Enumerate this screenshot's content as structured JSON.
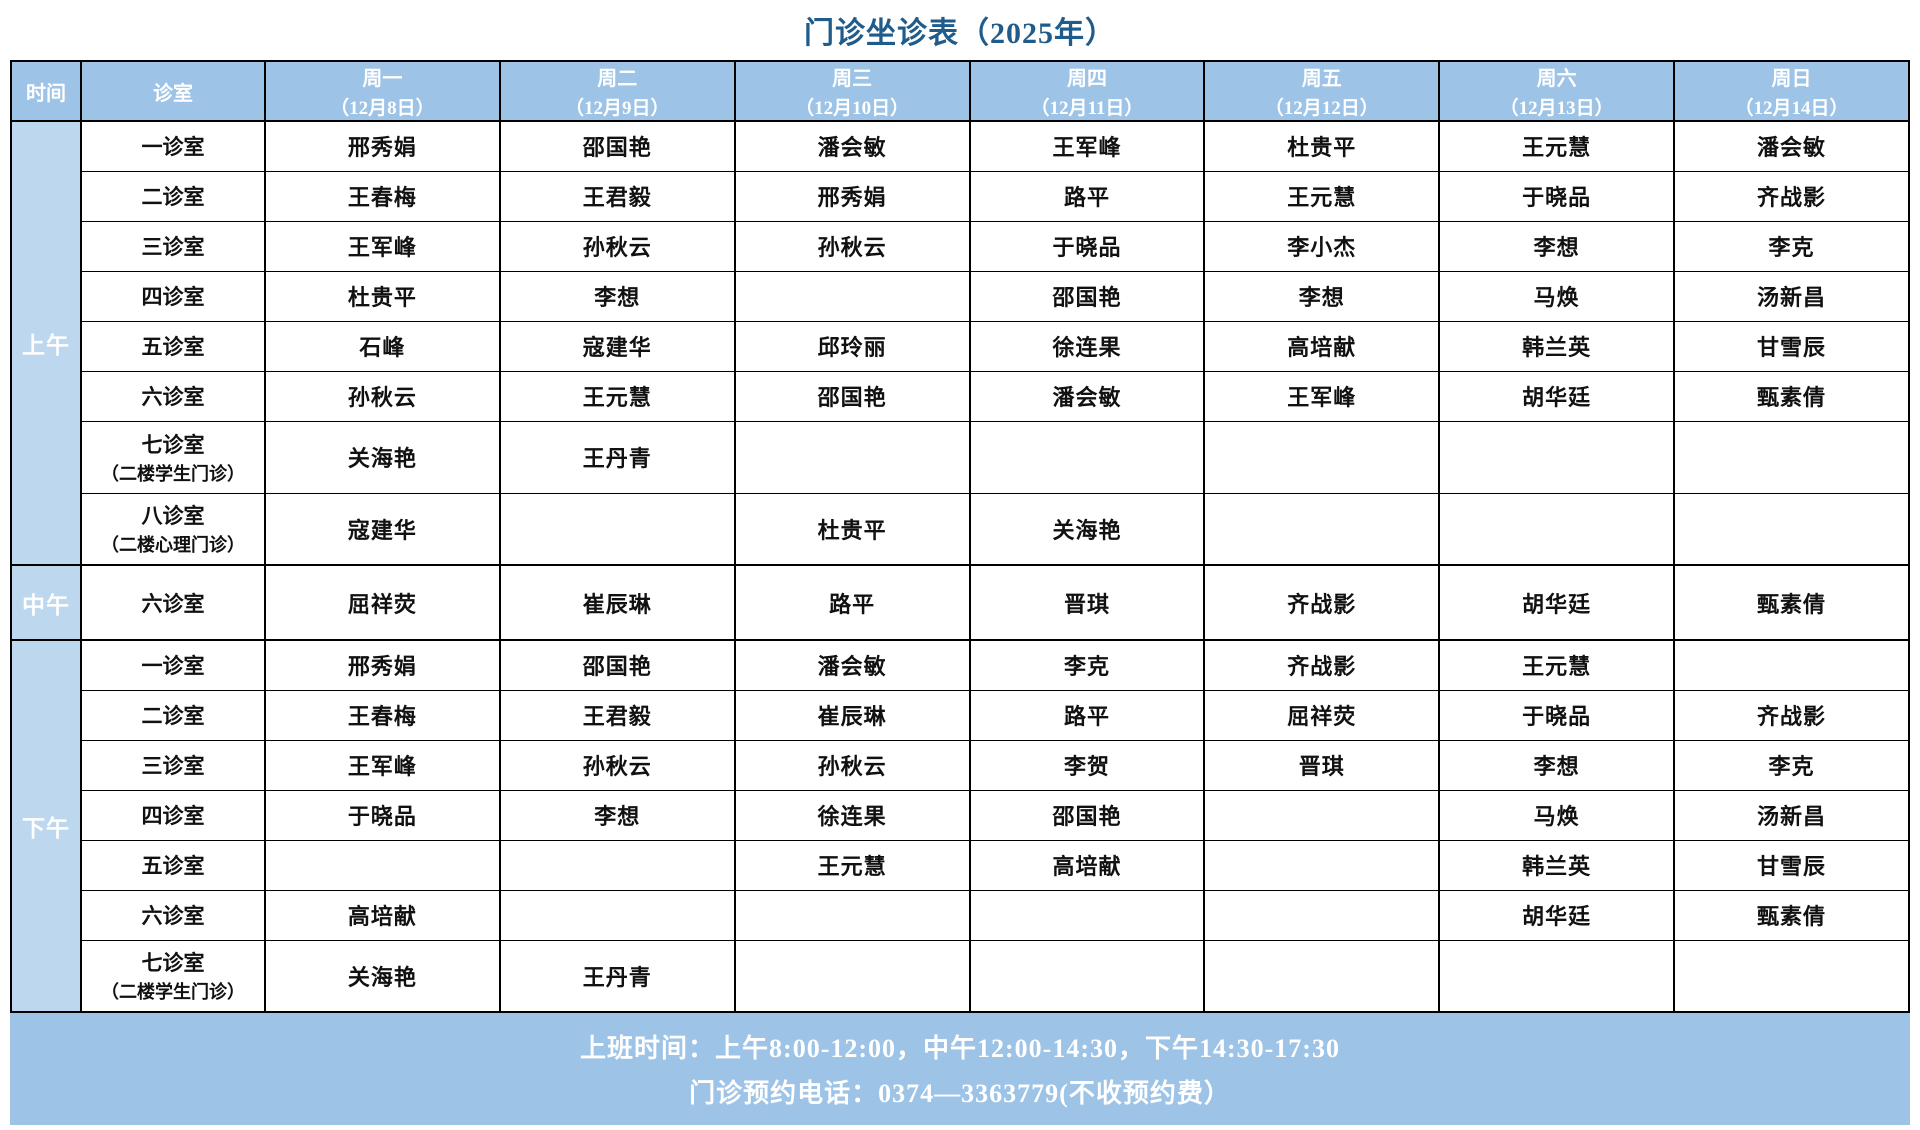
{
  "title": "门诊坐诊表（2025年）",
  "header": {
    "time_label": "时间",
    "room_label": "诊室",
    "days": [
      {
        "weekday": "周一",
        "date": "（12月8日）"
      },
      {
        "weekday": "周二",
        "date": "（12月9日）"
      },
      {
        "weekday": "周三",
        "date": "（12月10日）"
      },
      {
        "weekday": "周四",
        "date": "（12月11日）"
      },
      {
        "weekday": "周五",
        "date": "（12月12日）"
      },
      {
        "weekday": "周六",
        "date": "（12月13日）"
      },
      {
        "weekday": "周日",
        "date": "（12月14日）"
      }
    ]
  },
  "sections": [
    {
      "label": "上午",
      "rows": [
        {
          "room": "一诊室",
          "room2": "",
          "cells": [
            "邢秀娟",
            "邵国艳",
            "潘会敏",
            "王军峰",
            "杜贵平",
            "王元慧",
            "潘会敏"
          ]
        },
        {
          "room": "二诊室",
          "room2": "",
          "cells": [
            "王春梅",
            "王君毅",
            "邢秀娟",
            "路平",
            "王元慧",
            "于晓品",
            "齐战影"
          ]
        },
        {
          "room": "三诊室",
          "room2": "",
          "cells": [
            "王军峰",
            "孙秋云",
            "孙秋云",
            "于晓品",
            "李小杰",
            "李想",
            "李克"
          ]
        },
        {
          "room": "四诊室",
          "room2": "",
          "cells": [
            "杜贵平",
            "李想",
            "",
            "邵国艳",
            "李想",
            "马焕",
            "汤新昌"
          ]
        },
        {
          "room": "五诊室",
          "room2": "",
          "cells": [
            "石峰",
            "寇建华",
            "邱玲丽",
            "徐连果",
            "高培献",
            "韩兰英",
            "甘雪辰"
          ]
        },
        {
          "room": "六诊室",
          "room2": "",
          "cells": [
            "孙秋云",
            "王元慧",
            "邵国艳",
            "潘会敏",
            "王军峰",
            "胡华廷",
            "甄素倩"
          ]
        },
        {
          "room": "七诊室",
          "room2": "（二楼学生门诊）",
          "cells": [
            "关海艳",
            "王丹青",
            "",
            "",
            "",
            "",
            ""
          ]
        },
        {
          "room": "八诊室",
          "room2": "（二楼心理门诊）",
          "cells": [
            "寇建华",
            "",
            "杜贵平",
            "关海艳",
            "",
            "",
            ""
          ]
        }
      ]
    },
    {
      "label": "中午",
      "rows": [
        {
          "room": "六诊室",
          "room2": "",
          "cells": [
            "屈祥荧",
            "崔辰琳",
            "路平",
            "晋琪",
            "齐战影",
            "胡华廷",
            "甄素倩"
          ]
        }
      ]
    },
    {
      "label": "下午",
      "rows": [
        {
          "room": "一诊室",
          "room2": "",
          "cells": [
            "邢秀娟",
            "邵国艳",
            "潘会敏",
            "李克",
            "齐战影",
            "王元慧",
            ""
          ]
        },
        {
          "room": "二诊室",
          "room2": "",
          "cells": [
            "王春梅",
            "王君毅",
            "崔辰琳",
            "路平",
            "屈祥荧",
            "于晓品",
            "齐战影"
          ]
        },
        {
          "room": "三诊室",
          "room2": "",
          "cells": [
            "王军峰",
            "孙秋云",
            "孙秋云",
            "李贺",
            "晋琪",
            "李想",
            "李克"
          ]
        },
        {
          "room": "四诊室",
          "room2": "",
          "cells": [
            "于晓品",
            "李想",
            "徐连果",
            "邵国艳",
            "",
            "马焕",
            "汤新昌"
          ]
        },
        {
          "room": "五诊室",
          "room2": "",
          "cells": [
            "",
            "",
            "王元慧",
            "高培献",
            "",
            "韩兰英",
            "甘雪辰"
          ]
        },
        {
          "room": "六诊室",
          "room2": "",
          "cells": [
            "高培献",
            "",
            "",
            "",
            "",
            "胡华廷",
            "甄素倩"
          ]
        },
        {
          "room": "七诊室",
          "room2": "（二楼学生门诊）",
          "cells": [
            "关海艳",
            "王丹青",
            "",
            "",
            "",
            "",
            ""
          ]
        }
      ]
    }
  ],
  "footer": {
    "line1": "上班时间：上午8:00-12:00，中午12:00-14:30，下午14:30-17:30",
    "line2": "门诊预约电话：0374—3363779(不收预约费）"
  },
  "colors": {
    "title_color": "#1f5c8b",
    "header_bg": "#9dc3e6",
    "time_bg": "#bdd7ee",
    "footer_bg": "#9dc3e6",
    "border_color": "#000000",
    "text_color": "#111111",
    "white": "#ffffff"
  }
}
